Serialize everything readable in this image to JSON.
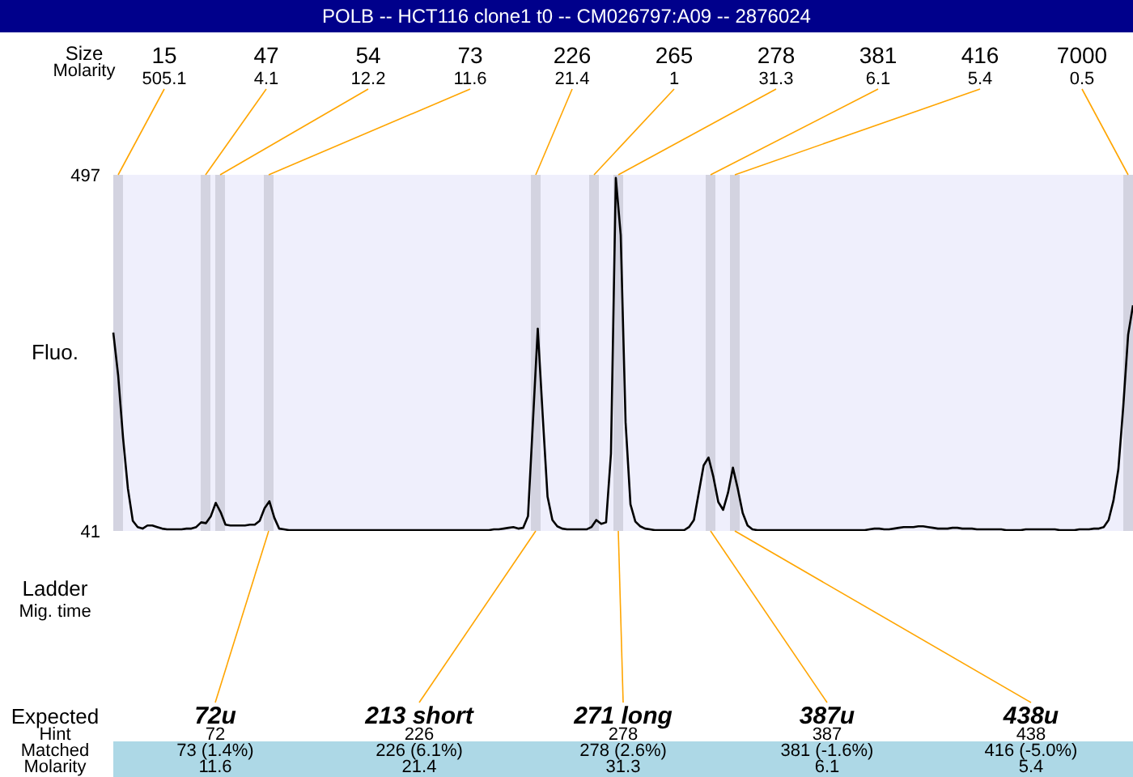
{
  "chart_data": {
    "type": "line",
    "title": "POLB -- HCT116 clone1 t0 -- CM026797:A09 -- 2876024",
    "ylabel": "Fluo.",
    "ylim": [
      41,
      497
    ],
    "yticks": [
      41,
      497
    ],
    "tick_labels": "y",
    "grid": false,
    "marker": "none",
    "line_style": "solid",
    "categories": [
      null,
      null,
      null,
      null,
      null,
      null,
      null,
      null,
      null,
      null,
      null,
      null,
      null,
      null,
      null,
      null,
      null,
      null,
      null,
      null,
      null,
      null,
      null,
      null,
      null,
      null,
      null,
      null,
      null,
      null,
      null,
      null,
      null,
      null,
      null,
      null,
      null,
      null,
      null,
      null,
      null,
      null,
      null,
      null,
      null,
      null,
      null,
      null,
      null,
      null,
      null,
      null,
      null,
      null,
      null,
      null,
      null,
      null,
      null,
      null,
      null,
      null,
      null,
      null,
      null,
      null,
      null,
      null,
      null,
      null,
      null,
      null,
      null,
      null,
      null,
      null,
      null,
      null,
      null,
      null,
      null,
      null,
      null,
      null,
      null,
      null,
      null,
      null,
      null,
      null,
      null,
      null,
      null,
      null,
      null,
      null,
      null,
      null,
      null,
      null,
      null,
      null,
      null,
      null,
      null,
      null,
      null,
      null,
      null,
      null,
      null,
      null,
      null,
      null,
      null,
      null,
      null,
      null,
      null,
      null,
      null,
      null,
      null,
      null,
      null,
      null,
      null,
      null,
      null,
      null,
      null,
      null,
      null,
      null,
      null,
      null,
      null,
      null,
      null,
      null,
      null,
      null,
      null,
      null,
      null,
      null,
      null,
      null,
      null,
      null,
      null,
      null,
      null,
      null,
      null,
      null,
      null,
      null,
      null,
      null,
      null,
      null,
      null,
      null,
      null,
      null,
      null,
      null,
      null,
      null,
      null,
      null,
      null,
      null,
      null,
      null,
      null,
      null,
      null,
      null,
      null,
      null,
      null,
      null,
      null,
      null,
      null,
      null,
      null,
      null,
      null,
      null,
      null,
      null,
      null,
      null,
      null,
      null,
      null,
      null,
      null,
      null,
      null,
      null,
      null,
      null,
      null,
      null,
      null,
      null
    ],
    "series": [
      {
        "color": "#000000",
        "values": [
          295,
          240,
          160,
          95,
          54,
          46,
          44,
          48,
          48,
          46,
          44,
          43,
          43,
          43,
          43,
          44,
          44,
          46,
          52,
          51,
          60,
          77,
          65,
          49,
          48,
          48,
          48,
          48,
          49,
          49,
          54,
          70,
          79,
          58,
          44,
          43,
          42,
          42,
          42,
          42,
          42,
          42,
          42,
          42,
          42,
          42,
          42,
          42,
          42,
          42,
          42,
          42,
          42,
          42,
          42,
          42,
          42,
          42,
          42,
          42,
          42,
          42,
          42,
          42,
          42,
          42,
          42,
          42,
          42,
          42,
          42,
          42,
          42,
          42,
          42,
          42,
          42,
          42,
          43,
          43,
          44,
          45,
          46,
          44,
          45,
          60,
          180,
          300,
          190,
          85,
          55,
          47,
          44,
          43,
          43,
          43,
          43,
          43,
          46,
          55,
          50,
          52,
          140,
          493,
          420,
          180,
          75,
          53,
          47,
          44,
          43,
          42,
          42,
          42,
          42,
          42,
          42,
          42,
          46,
          55,
          90,
          125,
          135,
          110,
          78,
          68,
          90,
          122,
          95,
          64,
          48,
          43,
          42,
          42,
          42,
          42,
          42,
          42,
          42,
          42,
          42,
          42,
          42,
          42,
          42,
          42,
          42,
          42,
          42,
          42,
          42,
          42,
          42,
          42,
          42,
          43,
          44,
          44,
          43,
          43,
          44,
          45,
          46,
          46,
          46,
          47,
          47,
          46,
          45,
          44,
          44,
          44,
          45,
          45,
          44,
          44,
          44,
          43,
          43,
          43,
          43,
          43,
          43,
          42,
          42,
          42,
          42,
          43,
          43,
          43,
          43,
          43,
          43,
          43,
          42,
          42,
          42,
          42,
          43,
          43,
          43,
          44,
          44,
          46,
          55,
          80,
          120,
          200,
          292,
          330
        ]
      }
    ],
    "annotations": [
      "Size",
      "Molarity",
      "Ladder",
      "Mig. time",
      "Expected",
      "Hint",
      "Matched",
      "Molarity",
      "15",
      "47",
      "54",
      "73",
      "226",
      "265",
      "278",
      "381",
      "416",
      "7000",
      "505.1",
      "4.1",
      "12.2",
      "11.6",
      "21.4",
      "1",
      "31.3",
      "6.1",
      "5.4",
      "0.5",
      "72u",
      "72",
      "73 (1.4%)",
      "11.6",
      "213 short",
      "226",
      "226 (6.1%)",
      "21.4",
      "271 long",
      "278",
      "278 (2.6%)",
      "31.3",
      "387u",
      "387",
      "381 (-1.6%)",
      "6.1",
      "438u",
      "438",
      "416 (-5.0%)",
      "5.4"
    ]
  }
}
